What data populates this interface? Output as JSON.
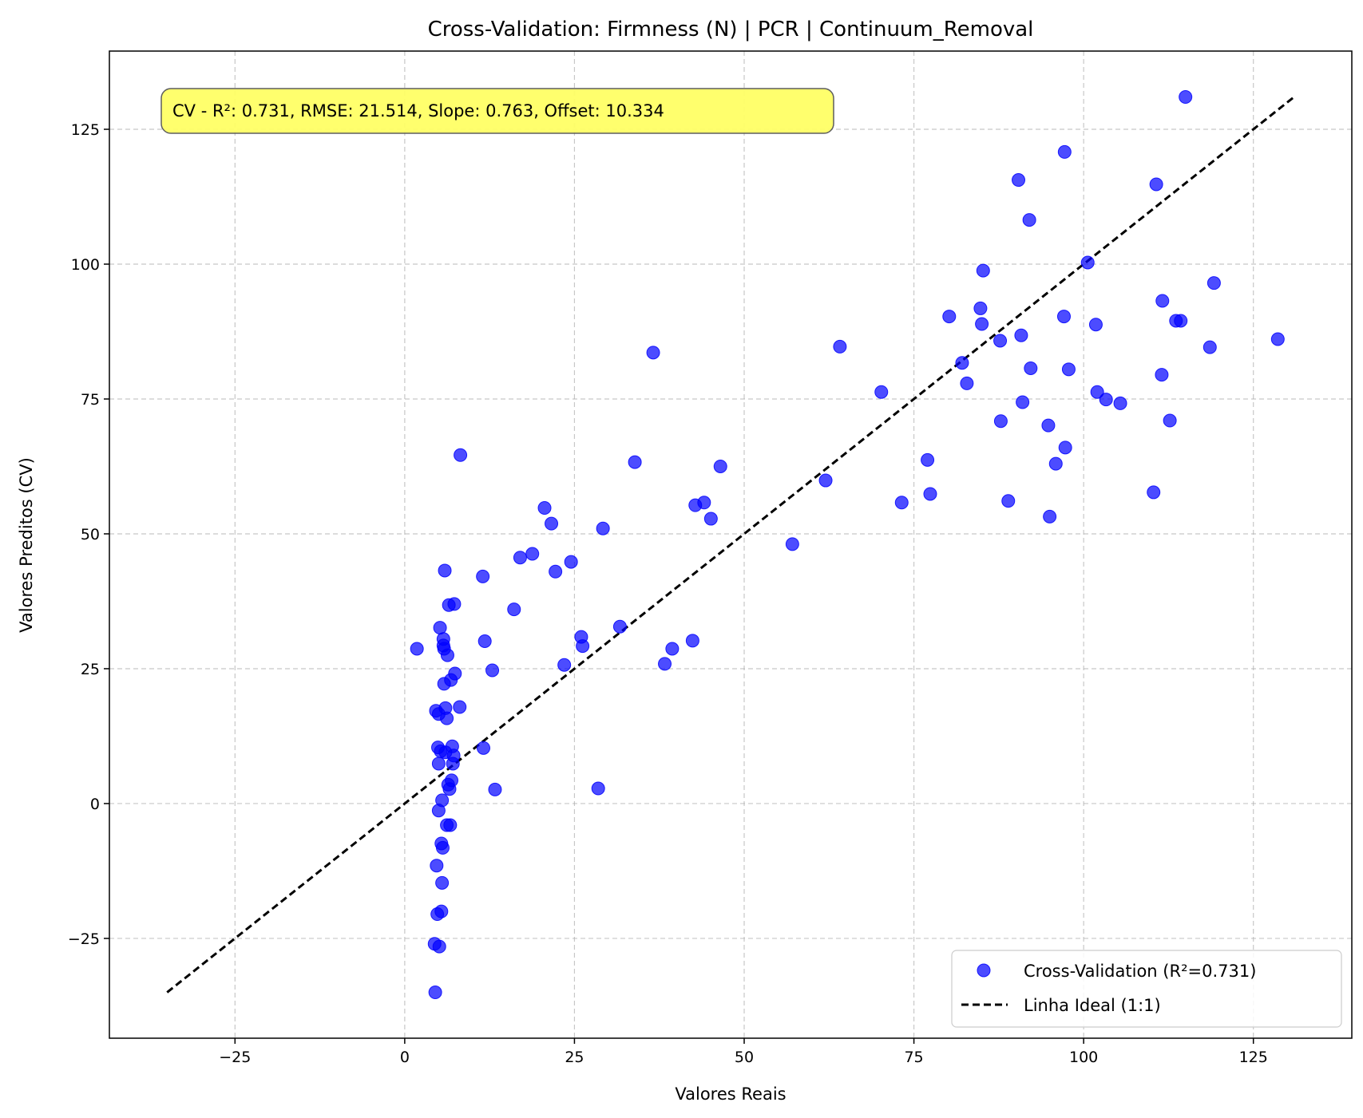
{
  "chart_data": {
    "type": "scatter",
    "title": "Cross-Validation: Firmness (N) | PCR | Continuum_Removal",
    "xlabel": "Valores Reais",
    "ylabel": "Valores Preditos (CV)",
    "xlim": [
      -43.5,
      139.5
    ],
    "ylim": [
      -43.5,
      139.5
    ],
    "xticks": [
      -25,
      0,
      25,
      50,
      75,
      100,
      125
    ],
    "yticks": [
      -25,
      0,
      25,
      50,
      75,
      100,
      125
    ],
    "xtick_labels": [
      "−25",
      "0",
      "25",
      "50",
      "75",
      "100",
      "125"
    ],
    "ytick_labels": [
      "−25",
      "0",
      "25",
      "50",
      "75",
      "100",
      "125"
    ],
    "grid": true,
    "annotation": "CV - R²: 0.731, RMSE: 21.514, Slope: 0.763, Offset: 10.334",
    "annotation_color": "#ffff66",
    "legend_position": "bottom-right",
    "series": [
      {
        "name": "Cross-Validation (R²=0.731)",
        "kind": "scatter",
        "color": "#0000ff",
        "x": [
          1.8,
          4.4,
          4.5,
          4.6,
          4.7,
          4.8,
          4.9,
          5.0,
          5.0,
          5.0,
          5.1,
          5.2,
          5.3,
          5.4,
          5.4,
          5.5,
          5.5,
          5.6,
          5.7,
          5.7,
          5.8,
          5.8,
          5.9,
          6.0,
          6.0,
          6.2,
          6.2,
          6.3,
          6.4,
          6.5,
          6.6,
          6.7,
          6.8,
          6.9,
          7.0,
          7.1,
          7.2,
          7.3,
          7.4,
          8.1,
          8.2,
          11.5,
          11.6,
          11.8,
          12.9,
          13.3,
          16.1,
          17.0,
          18.8,
          20.6,
          21.6,
          22.2,
          23.5,
          24.5,
          26.0,
          26.2,
          28.5,
          29.2,
          31.7,
          33.9,
          36.6,
          38.3,
          39.4,
          42.4,
          42.8,
          44.1,
          45.1,
          46.5,
          57.1,
          62.0,
          64.1,
          70.2,
          73.2,
          77.0,
          77.4,
          80.2,
          82.1,
          82.8,
          84.8,
          85.0,
          85.2,
          87.7,
          87.8,
          88.9,
          90.4,
          90.8,
          91.0,
          92.0,
          92.2,
          94.8,
          95.0,
          95.9,
          97.1,
          97.2,
          97.3,
          97.8,
          100.6,
          101.8,
          102.0,
          103.3,
          105.4,
          110.3,
          110.7,
          111.5,
          111.6,
          112.7,
          113.6,
          114.3,
          115.0,
          118.6,
          119.2,
          128.6
        ],
        "y": [
          28.7,
          -26.0,
          -35.0,
          17.2,
          -11.5,
          -20.5,
          10.4,
          16.6,
          -1.3,
          7.4,
          -26.5,
          32.6,
          9.7,
          -20.0,
          -7.4,
          -14.7,
          0.6,
          -8.2,
          29.3,
          30.5,
          22.2,
          28.7,
          43.2,
          17.7,
          9.5,
          15.8,
          -4.0,
          27.5,
          3.5,
          36.8,
          2.7,
          -4.0,
          22.9,
          4.3,
          10.6,
          7.4,
          8.9,
          37.0,
          24.1,
          17.9,
          64.6,
          42.1,
          10.3,
          30.1,
          24.7,
          2.6,
          36.0,
          45.6,
          46.3,
          54.8,
          51.9,
          43.0,
          25.7,
          44.8,
          30.9,
          29.2,
          2.8,
          51.0,
          32.8,
          63.3,
          83.6,
          25.9,
          28.7,
          30.2,
          55.3,
          55.8,
          52.8,
          62.5,
          48.1,
          59.9,
          84.7,
          76.3,
          55.8,
          63.7,
          57.4,
          90.3,
          81.7,
          77.9,
          91.8,
          88.9,
          98.8,
          85.8,
          70.9,
          56.1,
          115.6,
          86.8,
          74.4,
          108.2,
          80.7,
          70.1,
          53.2,
          63.0,
          90.3,
          120.8,
          66.0,
          80.5,
          100.3,
          88.8,
          76.3,
          74.9,
          74.2,
          57.7,
          114.8,
          79.5,
          93.2,
          71.0,
          89.5,
          89.5,
          131.0,
          84.6,
          96.5,
          86.1
        ]
      },
      {
        "name": "Linha Ideal (1:1)",
        "kind": "line",
        "color": "#000000",
        "dash": "dashed",
        "x": [
          -35,
          131
        ],
        "y": [
          -35,
          131
        ]
      }
    ]
  }
}
